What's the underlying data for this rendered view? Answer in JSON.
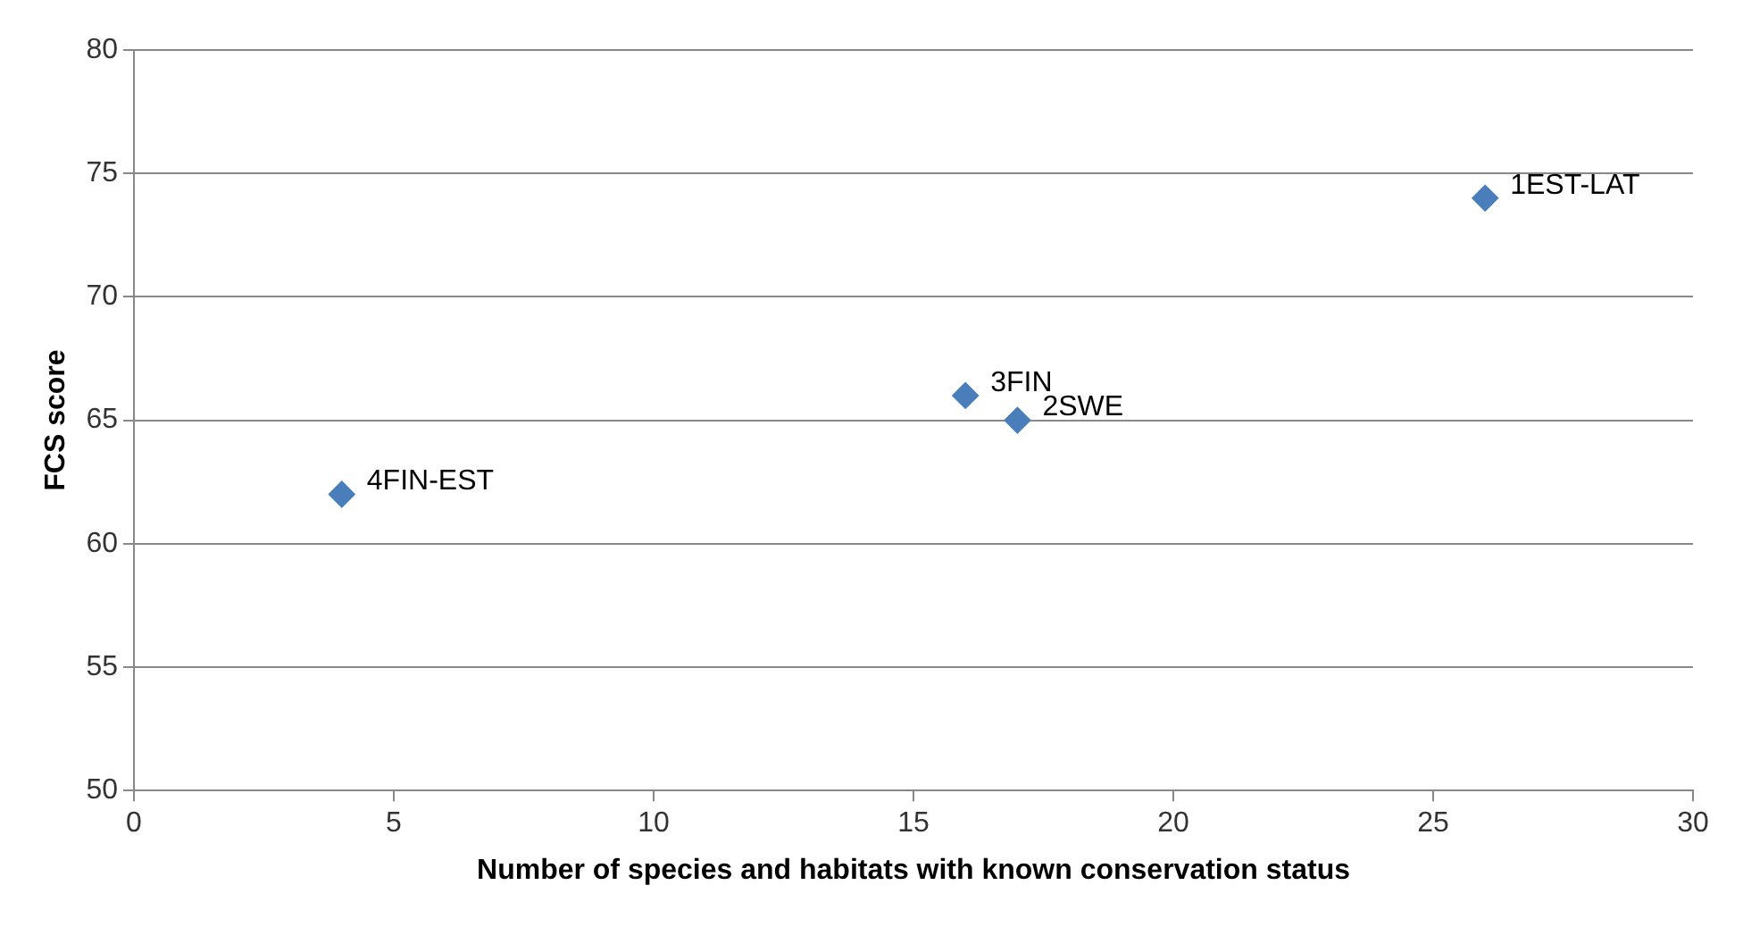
{
  "chart_data": {
    "type": "scatter",
    "xlabel": "Number of species and habitats with known conservation status",
    "ylabel": "FCS score",
    "x": [
      26,
      17,
      16,
      4
    ],
    "values": [
      74,
      65,
      66,
      62
    ],
    "color": "#4a7ebb",
    "marker": "diamond",
    "xlim": [
      0,
      30
    ],
    "xticks": [
      0,
      5,
      10,
      15,
      20,
      25,
      30
    ],
    "ylim": [
      50,
      80
    ],
    "yticks": [
      50,
      55,
      60,
      65,
      70,
      75,
      80
    ],
    "grid": "y",
    "legend": false,
    "annotations": [
      {
        "text": "1EST-LAT",
        "x": 26,
        "y": 74
      },
      {
        "text": "2SWE",
        "x": 17,
        "y": 65
      },
      {
        "text": "3FIN",
        "x": 16,
        "y": 66
      },
      {
        "text": "4FIN-EST",
        "x": 4,
        "y": 62
      }
    ]
  }
}
